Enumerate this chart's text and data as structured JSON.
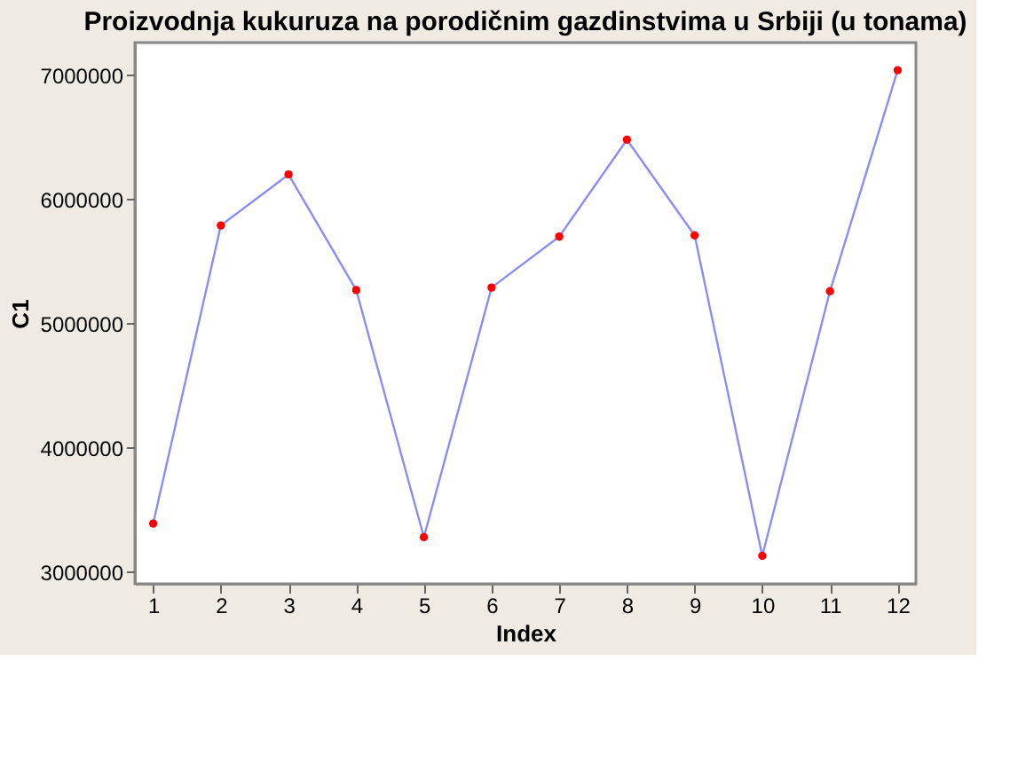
{
  "chart_data": {
    "type": "line",
    "title": "Proizvodnja kukuruza na porodičnim gazdinstvima u Srbiji (u tonama)",
    "xlabel": "Index",
    "ylabel": "C1",
    "x": [
      1,
      2,
      3,
      4,
      5,
      6,
      7,
      8,
      9,
      10,
      11,
      12
    ],
    "series": [
      {
        "color": "#8c8cf5",
        "values": [
          3390000,
          5790000,
          6200000,
          5270000,
          3280000,
          5290000,
          5700000,
          6480000,
          5710000,
          3130000,
          5260000,
          7040000
        ]
      }
    ],
    "xlim": [
      0.73,
      12.27
    ],
    "xticks": [
      1,
      2,
      3,
      4,
      5,
      6,
      7,
      8,
      9,
      10,
      11,
      12
    ],
    "ylim": [
      2905000,
      7262000
    ],
    "yticks": [
      3000000,
      4000000,
      5000000,
      6000000,
      7000000
    ],
    "grid": false,
    "marker": "circle",
    "line_style": "solid"
  }
}
